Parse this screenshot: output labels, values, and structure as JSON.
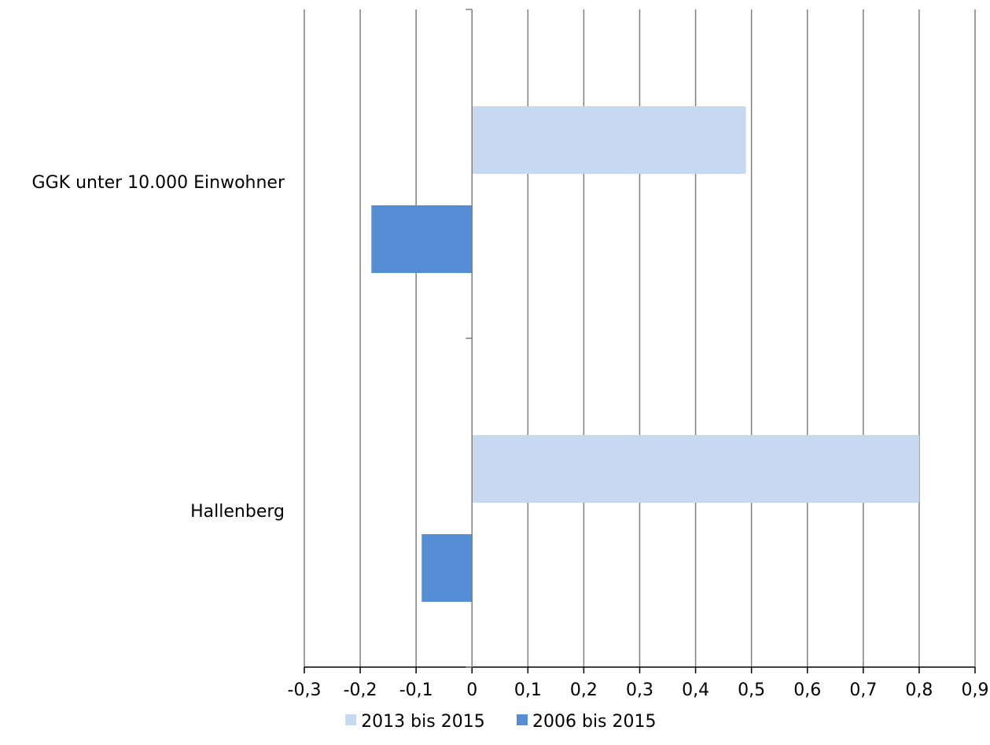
{
  "chart_data": {
    "type": "bar",
    "orientation": "horizontal",
    "categories": [
      "GGK unter 10.000 Einwohner",
      "Hallenberg"
    ],
    "series": [
      {
        "name": "2013 bis 2015",
        "values": [
          0.49,
          0.8
        ],
        "color": "#c6d9f1"
      },
      {
        "name": "2006 bis 2015",
        "values": [
          -0.18,
          -0.09
        ],
        "color": "#558ed5"
      }
    ],
    "xlim": [
      -0.3,
      0.9
    ],
    "xticks": [
      -0.3,
      -0.2,
      -0.1,
      0,
      0.1,
      0.2,
      0.3,
      0.4,
      0.5,
      0.6,
      0.7,
      0.8,
      0.9
    ],
    "xtick_labels": [
      "-0,3",
      "-0,2",
      "-0,1",
      "0",
      "0,1",
      "0,2",
      "0,3",
      "0,4",
      "0,5",
      "0,6",
      "0,7",
      "0,8",
      "0,9"
    ],
    "grid": true,
    "legend_position": "bottom",
    "title": "",
    "xlabel": "",
    "ylabel": ""
  }
}
